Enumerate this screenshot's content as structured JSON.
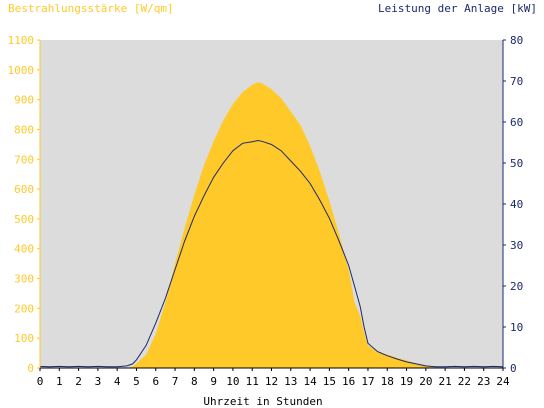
{
  "chart_data": {
    "type": "area",
    "left_axis_label": "Bestrahlungsstärke [W/qm]",
    "right_axis_label": "Leistung der Anlage [kW]",
    "xlabel": "Uhrzeit in Stunden",
    "x_ticks": [
      0,
      1,
      2,
      3,
      4,
      5,
      6,
      7,
      8,
      9,
      10,
      11,
      12,
      13,
      14,
      15,
      16,
      17,
      18,
      19,
      20,
      21,
      22,
      23,
      24
    ],
    "left_ylim": [
      0,
      1100
    ],
    "left_ticks": [
      0,
      100,
      200,
      300,
      400,
      500,
      600,
      700,
      800,
      900,
      1000,
      1100
    ],
    "right_ylim": [
      0,
      80
    ],
    "right_ticks": [
      0,
      10,
      20,
      30,
      40,
      50,
      60,
      70,
      80
    ],
    "grid": false,
    "colors": {
      "plot_background": "#dcdcdc",
      "irradiance_fill": "#ffc929",
      "power_line": "#1a2a6c",
      "left_axis": "#ffc929",
      "right_axis": "#1a2a6c"
    },
    "series": [
      {
        "axis": "left",
        "style": "area",
        "x": [
          0,
          4.5,
          4.8,
          5.0,
          5.5,
          6.0,
          6.5,
          7.0,
          7.5,
          8.0,
          8.5,
          9.0,
          9.5,
          10.0,
          10.5,
          11.0,
          11.3,
          11.5,
          12.0,
          12.5,
          13.0,
          13.5,
          14.0,
          14.5,
          15.0,
          15.5,
          16.0,
          16.3,
          16.6,
          16.8,
          17.0,
          17.5,
          18.0,
          18.5,
          19.0,
          19.5,
          20.0,
          20.5,
          21.0,
          24
        ],
        "y": [
          0,
          0,
          5,
          15,
          45,
          115,
          220,
          350,
          470,
          580,
          680,
          760,
          830,
          885,
          925,
          950,
          958,
          955,
          935,
          905,
          860,
          815,
          745,
          660,
          560,
          450,
          330,
          220,
          175,
          120,
          75,
          55,
          45,
          35,
          25,
          15,
          8,
          2,
          0,
          0
        ]
      },
      {
        "axis": "right",
        "style": "line",
        "x": [
          0,
          0.5,
          1,
          1.5,
          2,
          2.5,
          3,
          3.5,
          4,
          4.5,
          4.8,
          5.0,
          5.5,
          6.0,
          6.5,
          7.0,
          7.5,
          8.0,
          8.5,
          9.0,
          9.5,
          10.0,
          10.5,
          11.0,
          11.3,
          11.5,
          12.0,
          12.5,
          13.0,
          13.5,
          14.0,
          14.5,
          15.0,
          15.5,
          16.0,
          16.3,
          16.6,
          16.8,
          17.0,
          17.5,
          18.0,
          18.5,
          19.0,
          19.5,
          20.0,
          20.5,
          21.0,
          21.5,
          22,
          22.5,
          23,
          23.5,
          24
        ],
        "y": [
          0.4,
          0.3,
          0.4,
          0.3,
          0.4,
          0.3,
          0.4,
          0.3,
          0.3,
          0.5,
          1.0,
          2.0,
          5.5,
          11,
          17,
          24,
          31,
          37,
          42,
          46.5,
          50,
          53,
          54.8,
          55.2,
          55.5,
          55.3,
          54.5,
          53,
          50.5,
          48,
          45,
          41,
          36.5,
          31,
          25,
          20,
          15,
          10,
          6,
          4,
          3,
          2.2,
          1.5,
          1,
          0.5,
          0.3,
          0.3,
          0.4,
          0.3,
          0.4,
          0.3,
          0.4,
          0.3
        ]
      }
    ]
  }
}
